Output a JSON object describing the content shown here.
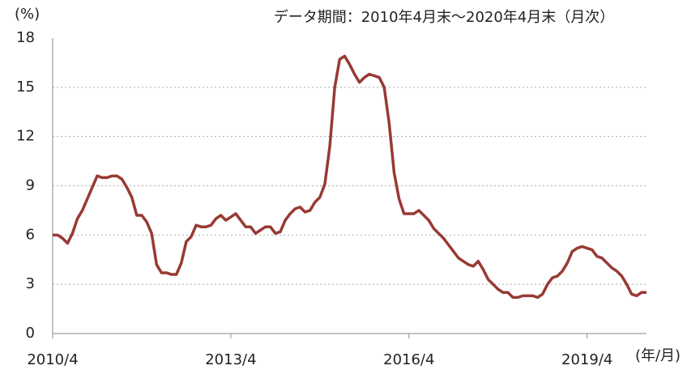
{
  "chart_data": {
    "type": "line",
    "title": "データ期間：2010年4月末～2020年4月末（月次）",
    "y_label": "(%)",
    "x_label": "(年/月)",
    "categories": [
      "2010/4",
      null,
      null,
      null,
      null,
      null,
      null,
      null,
      null,
      null,
      null,
      null,
      null,
      null,
      null,
      null,
      null,
      null,
      null,
      null,
      null,
      null,
      null,
      null,
      null,
      null,
      null,
      null,
      null,
      null,
      null,
      null,
      null,
      null,
      null,
      null,
      "2013/4",
      null,
      null,
      null,
      null,
      null,
      null,
      null,
      null,
      null,
      null,
      null,
      null,
      null,
      null,
      null,
      null,
      null,
      null,
      null,
      null,
      null,
      null,
      null,
      null,
      null,
      null,
      null,
      null,
      null,
      null,
      null,
      null,
      null,
      null,
      null,
      "2016/4",
      null,
      null,
      null,
      null,
      null,
      null,
      null,
      null,
      null,
      null,
      null,
      null,
      null,
      null,
      null,
      null,
      null,
      null,
      null,
      null,
      null,
      null,
      null,
      null,
      null,
      null,
      null,
      null,
      null,
      null,
      null,
      null,
      null,
      null,
      null,
      "2019/4",
      null,
      null,
      null,
      null,
      null,
      null,
      null,
      null,
      null,
      null,
      null,
      null
    ],
    "series": [
      {
        "name": null,
        "color": "#973a35",
        "values": [
          6.0,
          6.0,
          5.8,
          5.5,
          6.1,
          7.0,
          7.5,
          8.2,
          8.9,
          9.6,
          9.5,
          9.5,
          9.6,
          9.6,
          9.4,
          8.9,
          8.3,
          7.2,
          7.2,
          6.8,
          6.1,
          4.2,
          3.7,
          3.7,
          3.6,
          3.6,
          4.3,
          5.6,
          5.9,
          6.6,
          6.5,
          6.5,
          6.6,
          7.0,
          7.2,
          6.9,
          7.1,
          7.3,
          6.9,
          6.5,
          6.5,
          6.1,
          6.3,
          6.5,
          6.5,
          6.1,
          6.2,
          6.9,
          7.3,
          7.6,
          7.7,
          7.4,
          7.5,
          8.0,
          8.3,
          9.1,
          11.4,
          15.0,
          16.7,
          16.9,
          16.4,
          15.8,
          15.3,
          15.6,
          15.8,
          15.7,
          15.6,
          15.0,
          12.8,
          9.8,
          8.2,
          7.3,
          7.3,
          7.3,
          7.5,
          7.2,
          6.9,
          6.4,
          6.1,
          5.8,
          5.4,
          5.0,
          4.6,
          4.4,
          4.2,
          4.1,
          4.4,
          3.9,
          3.3,
          3.0,
          2.7,
          2.5,
          2.5,
          2.2,
          2.2,
          2.3,
          2.3,
          2.3,
          2.2,
          2.4,
          3.0,
          3.4,
          3.5,
          3.8,
          4.3,
          5.0,
          5.2,
          5.3,
          5.2,
          5.1,
          4.7,
          4.6,
          4.3,
          4.0,
          3.8,
          3.5,
          3.0,
          2.4,
          2.3,
          2.5,
          2.5
        ]
      }
    ],
    "ylim": [
      0,
      18
    ],
    "yticks": [
      0,
      3,
      6,
      9,
      12,
      15,
      18
    ],
    "grid": true
  }
}
